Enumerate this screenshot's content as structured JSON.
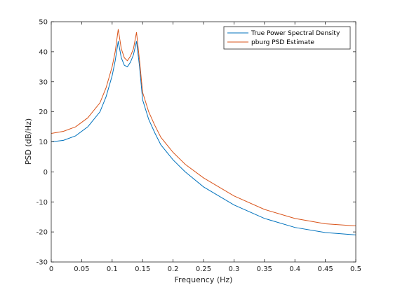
{
  "chart_data": {
    "type": "line",
    "xlabel": "Frequency (Hz)",
    "ylabel": "PSD (dB/Hz)",
    "xlim": [
      0,
      0.5
    ],
    "ylim": [
      -30,
      50
    ],
    "xticks": [
      0,
      0.05,
      0.1,
      0.15,
      0.2,
      0.25,
      0.3,
      0.35,
      0.4,
      0.45,
      0.5
    ],
    "xtick_labels": [
      "0",
      "0.05",
      "0.1",
      "0.15",
      "0.2",
      "0.25",
      "0.3",
      "0.35",
      "0.4",
      "0.45",
      "0.5"
    ],
    "yticks": [
      -30,
      -20,
      -10,
      0,
      10,
      20,
      30,
      40,
      50
    ],
    "ytick_labels": [
      "-30",
      "-20",
      "-10",
      "0",
      "10",
      "20",
      "30",
      "40",
      "50"
    ],
    "grid": false,
    "legend_position": "top-right",
    "series": [
      {
        "name": "True Power Spectral Density",
        "color": "#0072BD",
        "x": [
          0,
          0.02,
          0.04,
          0.06,
          0.08,
          0.09,
          0.1,
          0.105,
          0.11,
          0.115,
          0.12,
          0.125,
          0.13,
          0.135,
          0.14,
          0.145,
          0.15,
          0.16,
          0.17,
          0.18,
          0.2,
          0.22,
          0.25,
          0.3,
          0.35,
          0.4,
          0.45,
          0.5
        ],
        "y": [
          10,
          10.5,
          12,
          15,
          20,
          25,
          32,
          37,
          43.5,
          38,
          35.5,
          35,
          36.5,
          39,
          43.5,
          35,
          24,
          17.5,
          13,
          9,
          4,
          0,
          -5,
          -11,
          -15.5,
          -18.5,
          -20.2,
          -21
        ]
      },
      {
        "name": "pburg PSD Estimate",
        "color": "#D95319",
        "x": [
          0,
          0.02,
          0.04,
          0.06,
          0.08,
          0.09,
          0.1,
          0.105,
          0.11,
          0.115,
          0.12,
          0.125,
          0.13,
          0.135,
          0.14,
          0.145,
          0.15,
          0.16,
          0.17,
          0.18,
          0.2,
          0.22,
          0.25,
          0.3,
          0.35,
          0.4,
          0.45,
          0.5
        ],
        "y": [
          12.8,
          13.5,
          15,
          18,
          23,
          28,
          35,
          40,
          47.5,
          41,
          38,
          37,
          38.5,
          41,
          46.5,
          37,
          26.5,
          20,
          15.5,
          11.5,
          6.5,
          2.5,
          -2,
          -8,
          -12.5,
          -15.5,
          -17.3,
          -18
        ]
      }
    ]
  }
}
